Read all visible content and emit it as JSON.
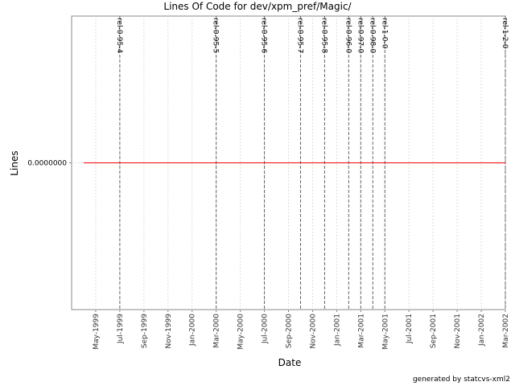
{
  "chart_data": {
    "type": "line",
    "title": "Lines Of Code for dev/xpm_pref/Magic/",
    "x_label": "Date",
    "y_label": "Lines",
    "footer": "generated by statcvs-xml2",
    "x": [
      "1999-04",
      "2002-03"
    ],
    "series": [
      {
        "name": "Lines",
        "color": "#ff0000",
        "values": [
          0,
          0
        ]
      }
    ],
    "xlim": [
      "1999-03",
      "2002-03"
    ],
    "xticks": [
      {
        "value": "1999-05",
        "label": "May-1999"
      },
      {
        "value": "1999-07",
        "label": "Jul-1999"
      },
      {
        "value": "1999-09",
        "label": "Sep-1999"
      },
      {
        "value": "1999-11",
        "label": "Nov-1999"
      },
      {
        "value": "2000-01",
        "label": "Jan-2000"
      },
      {
        "value": "2000-03",
        "label": "Mar-2000"
      },
      {
        "value": "2000-05",
        "label": "May-2000"
      },
      {
        "value": "2000-07",
        "label": "Jul-2000"
      },
      {
        "value": "2000-09",
        "label": "Sep-2000"
      },
      {
        "value": "2000-11",
        "label": "Nov-2000"
      },
      {
        "value": "2001-01",
        "label": "Jan-2001"
      },
      {
        "value": "2001-03",
        "label": "Mar-2001"
      },
      {
        "value": "2001-05",
        "label": "May-2001"
      },
      {
        "value": "2001-07",
        "label": "Jul-2001"
      },
      {
        "value": "2001-09",
        "label": "Sep-2001"
      },
      {
        "value": "2001-11",
        "label": "Nov-2001"
      },
      {
        "value": "2002-01",
        "label": "Jan-2002"
      },
      {
        "value": "2002-03",
        "label": "Mar-2002"
      }
    ],
    "ylim": [
      -1,
      1
    ],
    "yticks": [
      {
        "value": 0,
        "label": "0.0000000"
      }
    ],
    "grid": true,
    "markers": [
      {
        "label": "rel-0-95-4",
        "x": "1999-07"
      },
      {
        "label": "rel-0-95-5",
        "x": "2000-03"
      },
      {
        "label": "rel-0-95-6",
        "x": "2000-07"
      },
      {
        "label": "rel-0-95-7",
        "x": "2000-10"
      },
      {
        "label": "rel-0-95-8",
        "x": "2000-12"
      },
      {
        "label": "rel-0-96-0",
        "x": "2001-02"
      },
      {
        "label": "rel-0-97-0",
        "x": "2001-03"
      },
      {
        "label": "rel-0-98-0",
        "x": "2001-04"
      },
      {
        "label": "rel-1-0-0",
        "x": "2001-05"
      },
      {
        "label": "rel-1-2-0",
        "x": "2002-03"
      }
    ]
  }
}
